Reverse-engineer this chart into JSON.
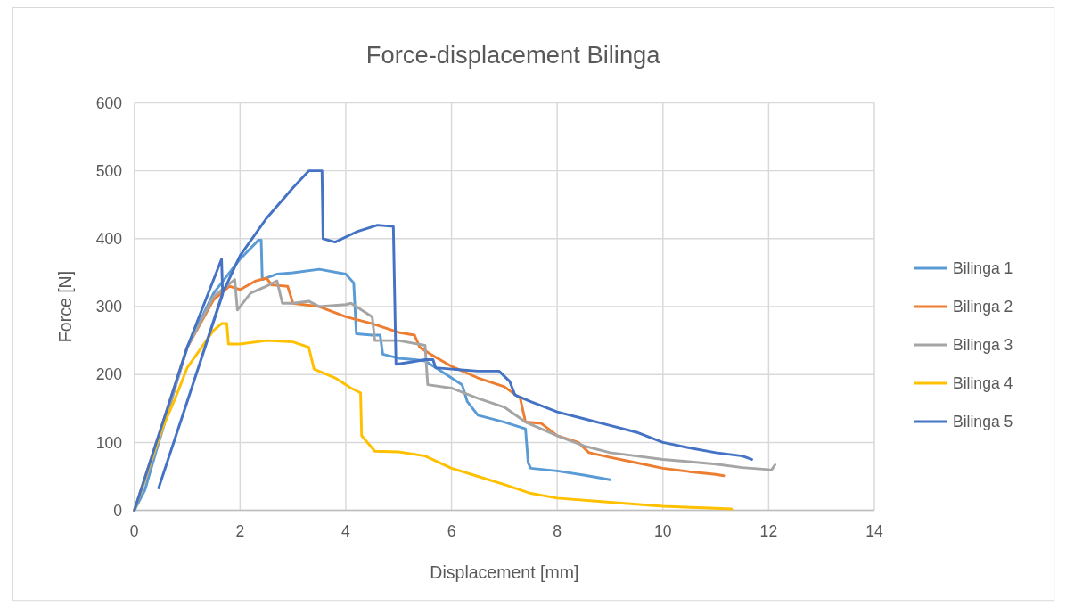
{
  "chart_data": {
    "type": "line",
    "title": "Force-displacement Bilinga",
    "xlabel": "Displacement [mm]",
    "ylabel": "Force [N]",
    "xlim": [
      0,
      14
    ],
    "xticks": [
      0,
      2,
      4,
      6,
      8,
      10,
      12,
      14
    ],
    "ylim": [
      0,
      600
    ],
    "yticks": [
      0,
      100,
      200,
      300,
      400,
      500,
      600
    ],
    "grid": true,
    "legend": "right",
    "marker": "none",
    "line_style": "solid",
    "series": [
      {
        "name": "Bilinga 1",
        "color": "#5b9bd5",
        "x": [
          0,
          0.2,
          0.5,
          1,
          1.5,
          2,
          2.35,
          2.4,
          2.42,
          2.7,
          3,
          3.5,
          4,
          4.15,
          4.2,
          4.5,
          4.65,
          4.7,
          5,
          5.3,
          5.5,
          5.7,
          6,
          6.2,
          6.3,
          6.5,
          7,
          7.4,
          7.45,
          7.5,
          8,
          8.5,
          9
        ],
        "values": [
          0,
          30,
          110,
          240,
          320,
          370,
          398,
          398,
          340,
          348,
          350,
          355,
          348,
          335,
          260,
          258,
          258,
          230,
          224,
          222,
          220,
          210,
          195,
          185,
          160,
          140,
          130,
          120,
          70,
          62,
          58,
          52,
          45
        ]
      },
      {
        "name": "Bilinga 2",
        "color": "#ed7d31",
        "x": [
          0,
          0.5,
          1,
          1.5,
          1.8,
          2,
          2.3,
          2.5,
          2.6,
          2.9,
          3,
          3.5,
          4,
          4.5,
          5,
          5.3,
          5.4,
          5.6,
          6,
          6.5,
          7,
          7.3,
          7.4,
          7.7,
          8,
          8.4,
          8.6,
          9,
          9.5,
          10,
          10.5,
          11,
          11.15
        ],
        "values": [
          0,
          120,
          240,
          310,
          330,
          325,
          338,
          342,
          332,
          330,
          305,
          300,
          285,
          275,
          262,
          258,
          240,
          230,
          212,
          195,
          182,
          165,
          130,
          128,
          110,
          100,
          85,
          78,
          70,
          62,
          57,
          53,
          51
        ]
      },
      {
        "name": "Bilinga 3",
        "color": "#a5a5a5",
        "x": [
          0,
          0.5,
          1,
          1.5,
          1.9,
          1.95,
          2.2,
          2.5,
          2.7,
          2.8,
          3,
          3.3,
          3.5,
          4,
          4.1,
          4.5,
          4.55,
          5,
          5.5,
          5.55,
          6,
          6.5,
          7,
          7.4,
          8,
          8.5,
          9,
          9.5,
          10,
          11,
          11.5,
          12,
          12.05,
          12.12
        ],
        "values": [
          0,
          110,
          240,
          315,
          340,
          295,
          320,
          330,
          338,
          305,
          305,
          308,
          300,
          303,
          305,
          285,
          250,
          250,
          243,
          185,
          180,
          165,
          152,
          130,
          110,
          95,
          85,
          80,
          75,
          68,
          63,
          60,
          59,
          67
        ]
      },
      {
        "name": "Bilinga 4",
        "color": "#ffc000",
        "x": [
          0,
          0.5,
          0.8,
          0.85,
          1,
          1.5,
          1.65,
          1.75,
          1.78,
          2,
          2.5,
          3,
          3.3,
          3.4,
          3.8,
          4.1,
          4.28,
          4.3,
          4.55,
          5,
          5.5,
          6,
          6.5,
          7,
          7.5,
          8,
          9,
          10,
          11,
          11.3
        ],
        "values": [
          0,
          115,
          170,
          180,
          210,
          265,
          275,
          275,
          245,
          245,
          250,
          248,
          240,
          208,
          195,
          180,
          173,
          110,
          87,
          86,
          80,
          62,
          50,
          38,
          25,
          18,
          12,
          6,
          3,
          2
        ]
      },
      {
        "name": "Bilinga 5",
        "color": "#4472c4",
        "x": [
          0,
          0.5,
          1,
          1.3,
          1.65,
          1.67,
          0.46,
          1.0,
          1.67,
          2,
          2.5,
          3,
          3.3,
          3.55,
          3.57,
          3.8,
          4.2,
          4.6,
          4.9,
          4.95,
          5.2,
          5.5,
          5.65,
          5.7,
          6,
          6.5,
          6.9,
          7.1,
          7.2,
          7.5,
          8,
          8.5,
          9,
          9.5,
          10,
          10.5,
          11,
          11.5,
          11.68
        ],
        "values": [
          0,
          120,
          240,
          300,
          370,
          318,
          33,
          160,
          320,
          375,
          430,
          475,
          500,
          500,
          400,
          395,
          410,
          420,
          418,
          215,
          218,
          222,
          222,
          210,
          208,
          205,
          205,
          190,
          170,
          160,
          145,
          135,
          125,
          115,
          100,
          92,
          85,
          80,
          75
        ]
      }
    ]
  }
}
